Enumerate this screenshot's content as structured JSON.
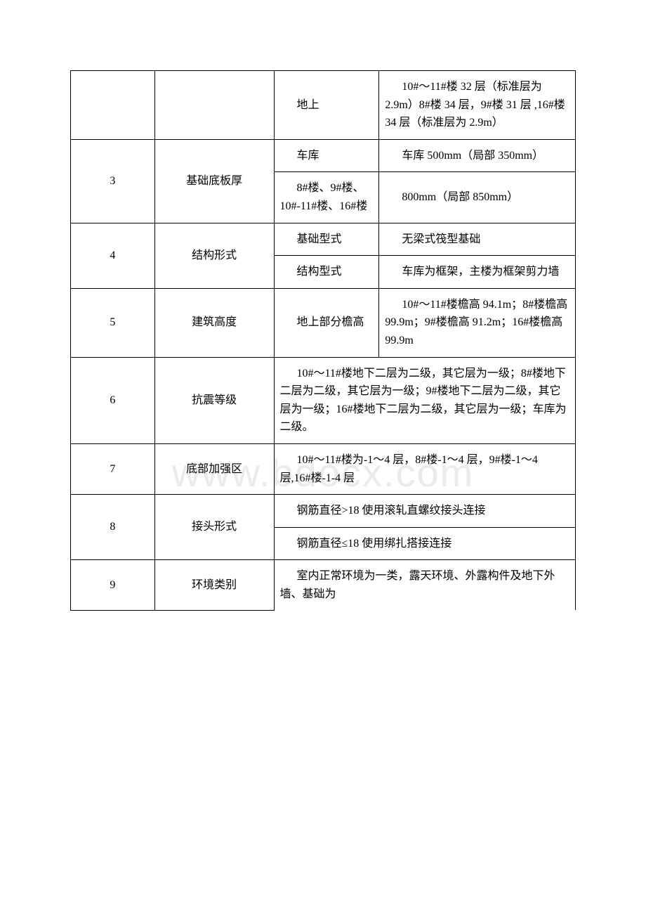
{
  "watermark": "www.bdocx.com",
  "rows": [
    {
      "num": "",
      "cat": "",
      "sub": "地上",
      "val": "10#～11#楼 32 层（标准层为 2.9m）8#楼 34 层，9#楼 31 层 ,16#楼 34 层（标准层为 2.9m）"
    },
    {
      "num": "3",
      "cat": "基础底板厚",
      "subs": [
        {
          "sub": "车库",
          "val": "车库 500mm（局部 350mm）"
        },
        {
          "sub": "8#楼、9#楼、10#-11#楼、16#楼",
          "val": "800mm（局部 850mm）"
        }
      ]
    },
    {
      "num": "4",
      "cat": "结构形式",
      "subs": [
        {
          "sub": "基础型式",
          "val": "无梁式筏型基础"
        },
        {
          "sub": "结构型式",
          "val": "车库为框架，主楼为框架剪力墙"
        }
      ]
    },
    {
      "num": "5",
      "cat": "建筑高度",
      "sub": "地上部分檐高",
      "val": "10#～11#楼檐高 94.1m；8#楼檐高 99.9m；9#楼檐高 91.2m；16#楼檐高 99.9m"
    },
    {
      "num": "6",
      "cat": "抗震等级",
      "merged": "10#～11#楼地下二层为二级，其它层为一级；8#楼地下二层为二级，其它层为一级；9#楼地下二层为二级，其它层为一级；16#楼地下二层为二级，其它层为一级；车库为二级。"
    },
    {
      "num": "7",
      "cat": "底部加强区",
      "merged": "10#～11#楼为-1～4 层，8#楼-1～4 层，9#楼-1～4 层,16#楼-1-4 层"
    },
    {
      "num": "8",
      "cat": "接头形式",
      "mergedRows": [
        "钢筋直径>18 使用滚轧直螺纹接头连接",
        "钢筋直径≤18 使用绑扎搭接连接"
      ]
    },
    {
      "num": "9",
      "cat": "环境类别",
      "merged": "室内正常环境为一类，露天环境、外露构件及地下外墙、基础为"
    }
  ]
}
